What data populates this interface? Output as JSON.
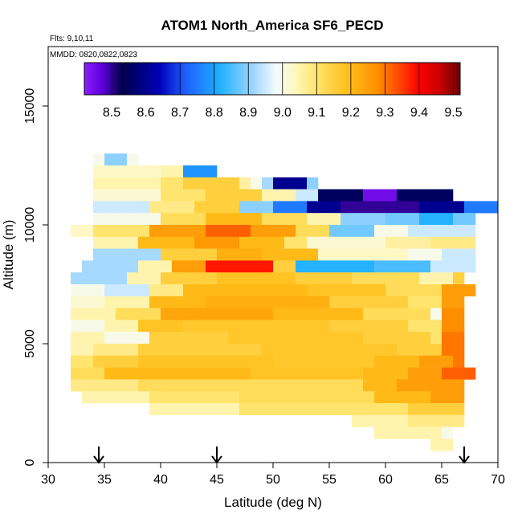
{
  "chart_data": {
    "type": "heatmap",
    "title": "ATOM1 North_America SF6_PECD",
    "flights_note": "Flts: 9,10,11",
    "mmdd_note": "MMDD: 0820,0822,0823",
    "xlabel": "Latitude (deg N)",
    "ylabel": "Altitude (m)",
    "xlim": [
      30,
      70
    ],
    "ylim": [
      0,
      17500
    ],
    "x_ticks": [
      "30",
      "35",
      "40",
      "45",
      "50",
      "55",
      "60",
      "65",
      "70"
    ],
    "y_ticks": [
      "0",
      "5000",
      "10000",
      "15000"
    ],
    "colorbar": {
      "min": 8.42,
      "max": 9.52,
      "ticks": [
        "8.5",
        "8.6",
        "8.7",
        "8.8",
        "8.9",
        "9.0",
        "9.1",
        "9.2",
        "9.3",
        "9.4",
        "9.5"
      ]
    },
    "arrows_latitude": [
      34.5,
      45,
      67
    ],
    "grid": false,
    "legend": "colorbar-top",
    "cell_size": {
      "lat": 1,
      "alt_m": 500
    },
    "cells": [
      {
        "alt": 12500,
        "row": "9.0:34-35,8.9:35-37,9.0:37-38"
      },
      {
        "alt": 12000,
        "row": "9.03:34-40,9.05:40-42,8.78:42-45"
      },
      {
        "alt": 11500,
        "row": "9.05:34-40,9.1:40-42,9.15:42-47,9.06:47-48,9.0:48-49,8.92:49-50,8.6:50-53,8.9:53-54"
      },
      {
        "alt": 11000,
        "row": "9.02:34-40,9.1:40-44,9.15:44-49,9.05:49-52,8.95:52-54,8.55:54-58,8.45:58-61,8.55:61-66"
      },
      {
        "alt": 10500,
        "row": "8.95:34-39,9.08:39-43,9.15:43-47,8.9:47-50,8.75:50-53,8.6:53-56,8.5:56-63,8.6:63-67,8.75:67-70"
      },
      {
        "alt": 10000,
        "row": "9.0:34-40,9.12:40-44,9.2:44-49,9.12:49-53,9.05:53-56,8.9:56-60,8.88:60-63,8.82:63-66,8.88:66-68"
      },
      {
        "alt": 9500,
        "row": "9.03:32-34,9.1:34-39,9.25:39-44,9.32:44-48,9.25:48-52,9.12:52-55,8.88:55-59,9.0:59-62,8.95:62-68"
      },
      {
        "alt": 9000,
        "row": "9.05:34-38,9.2:38-43,9.26:43-47,9.2:47-51,9.1:51-53,9.02:53-60,9.06:60-64,9.08:64-68"
      },
      {
        "alt": 8500,
        "row": "8.92:34-40,9.15:40-45,9.22:45-49,9.2:49-54,9.03:54-62,9.0:62-65,8.95:65-68"
      },
      {
        "alt": 8000,
        "row": "8.92:33-38,9.05:38-41,9.25:41-44,9.38:44-50,9.15:50-52,8.82:52-59,8.85:59-64,8.95:64-68"
      },
      {
        "alt": 7500,
        "row": "8.92:32-37,9.05:37-40,9.15:40-45,9.18:45-52,9.15:52-57,9.12:57-63,9.05:63-66,9.15:66-67"
      },
      {
        "alt": 7000,
        "row": "9.0:32-35,8.95:35-39,9.08:39-42,9.2:42-53,9.18:53-60,9.12:60-65,9.25:65-68"
      },
      {
        "alt": 6500,
        "row": "9.02:32-35,9.05:35-39,9.2:39-44,9.22:44-55,9.15:55-62,9.1:62-65,9.25:65-67"
      },
      {
        "alt": 6000,
        "row": "9.05:32-36,9.12:36-40,9.24:40-50,9.2:50-58,9.12:58-64,9.0:64-65,9.28:65-67"
      },
      {
        "alt": 5500,
        "row": "9.0:32-35,9.05:35-38,9.18:38-42,9.17:42-55,9.15:55-62,9.1:62-65,9.28:65-67"
      },
      {
        "alt": 5000,
        "row": "9.05:32-35,9.0:35-39,9.15:39-46,9.17:46-58,9.15:58-64,9.1:64-65,9.3:65-67"
      },
      {
        "alt": 4500,
        "row": "9.05:32-34,9.08:34-38,9.15:38-49,9.17:49-61,9.15:61-65,9.3:65-67"
      },
      {
        "alt": 4000,
        "row": "9.1:32-34,9.15:34-38,9.18:38-50,9.17:50-59,9.2:59-63,9.25:63-66,9.3:66-67"
      },
      {
        "alt": 3500,
        "row": "9.12:32-35,9.2:35-48,9.18:48-58,9.2:58-62,9.25:62-65,9.32:65-68"
      },
      {
        "alt": 3000,
        "row": "9.08:32-38,9.12:38-50,9.12:50-58,9.2:58-61,9.25:61-67"
      },
      {
        "alt": 2500,
        "row": "9.05:33-39,9.1:39-47,9.12:47-59,9.2:59-64,9.25:64-67"
      },
      {
        "alt": 2000,
        "row": "9.05:39-47,9.1:47-55,9.1:55-62,9.15:62-67"
      },
      {
        "alt": 1500,
        "row": "9.05:57-62,9.08:62-67"
      },
      {
        "alt": 1000,
        "row": "9.05:59-65,9.0:65-66"
      },
      {
        "alt": 500,
        "row": "9.05:64-66"
      }
    ]
  }
}
